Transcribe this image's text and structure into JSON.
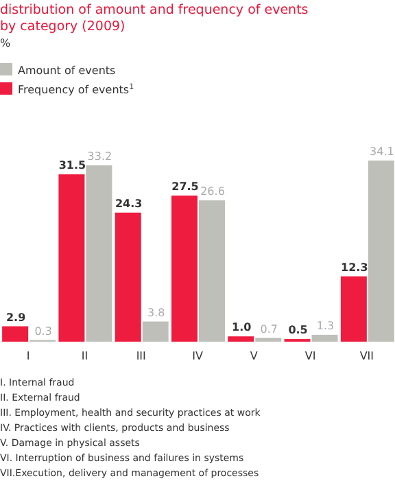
{
  "chart_data": {
    "type": "bar",
    "title": "distribution of amount and frequency of events by category (2009)",
    "subtitle": "%",
    "categories": [
      "I",
      "II",
      "III",
      "IV",
      "V",
      "VI",
      "VII"
    ],
    "series": [
      {
        "name": "Frequency of events$^{1}$",
        "color": "#ee1c3e",
        "values": [
          2.9,
          31.5,
          24.3,
          27.5,
          1.0,
          0.5,
          12.3
        ],
        "value_labels": [
          "2.9",
          "31.5",
          "24.3",
          "27.5",
          "1.0",
          "0.5",
          "12.3"
        ]
      },
      {
        "name": "Amount of events",
        "color": "#bfbfb9",
        "values": [
          0.3,
          33.2,
          3.8,
          26.6,
          0.7,
          1.3,
          34.1
        ],
        "value_labels": [
          "0.3",
          "33.2",
          "3.8",
          "26.6",
          "0.7",
          "1.3",
          "34.1"
        ]
      }
    ],
    "legend": "top left",
    "annotations": [
      "I.  Internal fraud",
      "II.  External fraud",
      "III.  Employment, health and security practices at work",
      "IV.  Practices with clients, products and business",
      "V.  Damage in physical assets",
      "VI.  Interruption of business and failures in systems",
      "VII.Execution, delivery and management of processes"
    ]
  }
}
